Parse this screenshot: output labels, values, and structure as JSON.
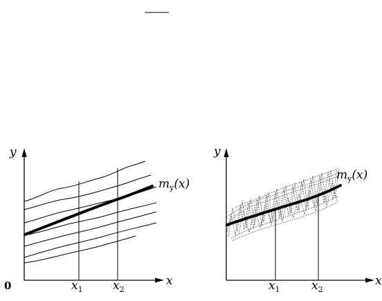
{
  "left_panel": {
    "y_label": "y",
    "x_label": "x",
    "origin_label": "0",
    "x1_main": "x",
    "x1_sub": "1",
    "x2_main": "x",
    "x2_sub": "2",
    "curve_label_main": "m",
    "curve_label_sub": "y",
    "curve_label_arg": "(x)"
  },
  "right_panel": {
    "y_label": "y",
    "x_label": "x",
    "x1_main": "x",
    "x1_sub": "1",
    "x2_main": "x",
    "x2_sub": "2",
    "curve_label_main": "m",
    "curve_label_sub": "y",
    "curve_label_arg": "(x)"
  }
}
